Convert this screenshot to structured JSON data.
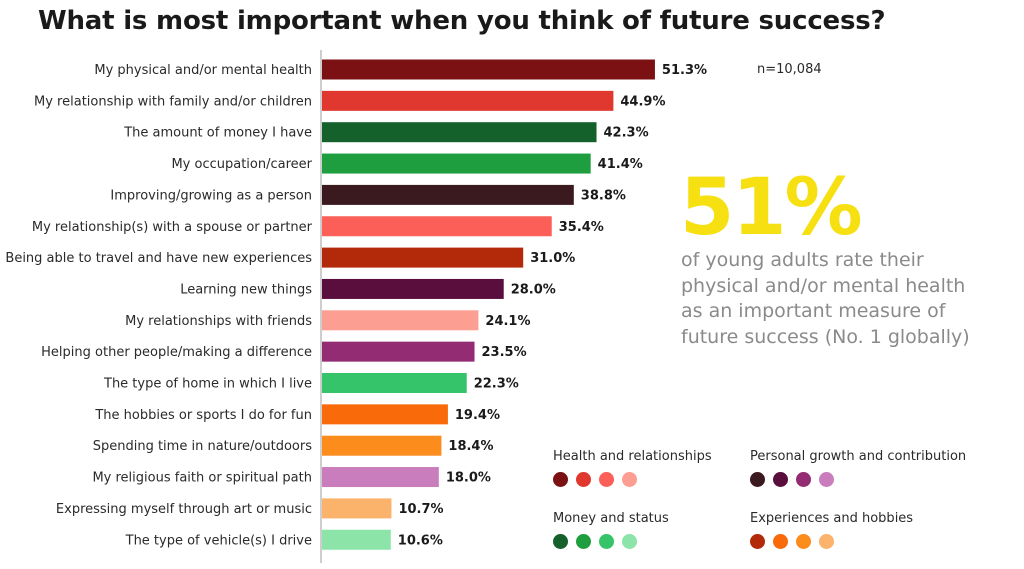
{
  "title": "What is most important when you think of future success?",
  "note": "n=10,084",
  "highlight": {
    "big": "51%",
    "text": "of young adults rate their physical and/or mental health as an important measure of future success (No. 1 globally)",
    "color": "#f7e011"
  },
  "chart_data": {
    "type": "bar",
    "orientation": "horizontal",
    "categories": [
      "My physical and/or mental health",
      "My relationship with family and/or children",
      "The amount of money I have",
      "My occupation/career",
      "Improving/growing as a person",
      "My relationship(s) with a spouse or partner",
      "Being able to travel and have new experiences",
      "Learning new things",
      "My relationships with friends",
      "Helping other people/making a difference",
      "The type of home in which I live",
      "The hobbies or sports I do for fun",
      "Spending time in nature/outdoors",
      "My religious faith or spiritual path",
      "Expressing myself through art or music",
      "The type of vehicle(s) I drive"
    ],
    "values": [
      51.3,
      44.9,
      42.3,
      41.4,
      38.8,
      35.4,
      31.0,
      28.0,
      24.1,
      23.5,
      22.3,
      19.4,
      18.4,
      18.0,
      10.7,
      10.6
    ],
    "value_labels": [
      "51.3%",
      "44.9%",
      "42.3%",
      "41.4%",
      "38.8%",
      "35.4%",
      "31.0%",
      "28.0%",
      "24.1%",
      "23.5%",
      "22.3%",
      "19.4%",
      "18.4%",
      "18.0%",
      "10.7%",
      "10.6%"
    ],
    "bar_colors": [
      "#7b1113",
      "#e0382e",
      "#14612c",
      "#1f9e3f",
      "#3b1a1f",
      "#fb5f57",
      "#b22a0a",
      "#5a0e3e",
      "#fc9e92",
      "#932c72",
      "#36c46a",
      "#f86a0a",
      "#fc8c1c",
      "#c97dbd",
      "#fbb36c",
      "#8ce4a8"
    ],
    "xlim": [
      0,
      55
    ]
  },
  "legend": [
    {
      "title": "Health and relationships",
      "colors": [
        "#7b1113",
        "#e0382e",
        "#fb5f57",
        "#fc9e92"
      ]
    },
    {
      "title": "Personal growth and contribution",
      "colors": [
        "#3b1a1f",
        "#5a0e3e",
        "#932c72",
        "#c97dbd"
      ]
    },
    {
      "title": "Money and status",
      "colors": [
        "#14612c",
        "#1f9e3f",
        "#36c46a",
        "#8ce4a8"
      ]
    },
    {
      "title": "Experiences and hobbies",
      "colors": [
        "#b22a0a",
        "#f86a0a",
        "#fc8c1c",
        "#fbb36c"
      ]
    }
  ]
}
